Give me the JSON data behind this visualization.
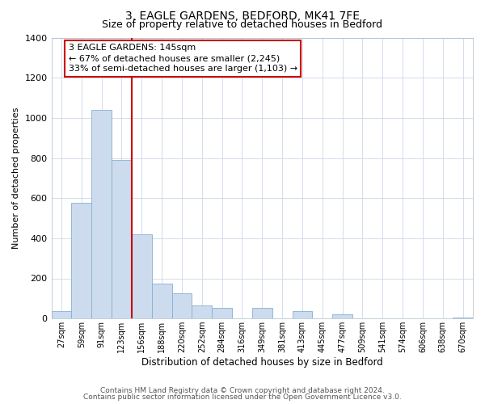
{
  "title": "3, EAGLE GARDENS, BEDFORD, MK41 7FE",
  "subtitle": "Size of property relative to detached houses in Bedford",
  "xlabel": "Distribution of detached houses by size in Bedford",
  "ylabel": "Number of detached properties",
  "bar_color": "#ccdcee",
  "bar_edge_color": "#8aaed0",
  "highlight_line_color": "#cc0000",
  "annotation_text": "3 EAGLE GARDENS: 145sqm\n← 67% of detached houses are smaller (2,245)\n33% of semi-detached houses are larger (1,103) →",
  "annotation_box_color": "#ffffff",
  "annotation_box_edge_color": "#cc0000",
  "categories": [
    "27sqm",
    "59sqm",
    "91sqm",
    "123sqm",
    "156sqm",
    "188sqm",
    "220sqm",
    "252sqm",
    "284sqm",
    "316sqm",
    "349sqm",
    "381sqm",
    "413sqm",
    "445sqm",
    "477sqm",
    "509sqm",
    "541sqm",
    "574sqm",
    "606sqm",
    "638sqm",
    "670sqm"
  ],
  "values": [
    35,
    575,
    1040,
    790,
    420,
    175,
    125,
    65,
    55,
    0,
    55,
    0,
    35,
    0,
    20,
    0,
    0,
    0,
    0,
    0,
    5
  ],
  "ylim": [
    0,
    1400
  ],
  "yticks": [
    0,
    200,
    400,
    600,
    800,
    1000,
    1200,
    1400
  ],
  "footer_line1": "Contains HM Land Registry data © Crown copyright and database right 2024.",
  "footer_line2": "Contains public sector information licensed under the Open Government Licence v3.0.",
  "background_color": "#ffffff",
  "grid_color": "#cdd8e8"
}
